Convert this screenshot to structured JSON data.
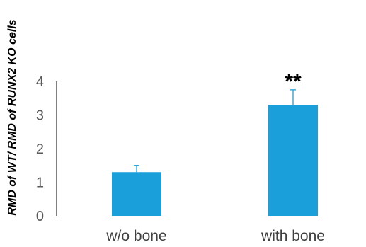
{
  "chart_data": {
    "type": "bar",
    "categories": [
      "w/o bone",
      "with bone"
    ],
    "values": [
      1.3,
      3.3
    ],
    "error_plus": [
      0.2,
      0.45
    ],
    "ylim": [
      0,
      4
    ],
    "yticks": [
      "0",
      "1",
      "2",
      "3",
      "4"
    ],
    "ylabel": "RMD  of WT/ RMD of  RUNX2 KO cells",
    "xlabel": "",
    "title": "",
    "annotations": [
      {
        "category": "with bone",
        "text": "**"
      }
    ],
    "grid": false,
    "legend": "none",
    "bar_color": "#1a9fda",
    "axis_color": "#000000",
    "error_bar_color": "#1a9fda"
  }
}
